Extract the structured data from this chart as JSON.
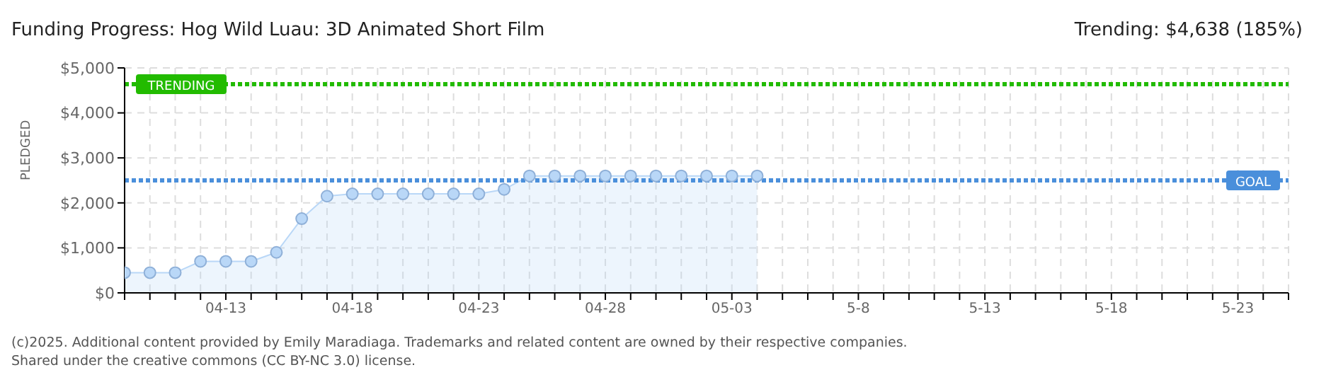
{
  "chart_data": {
    "type": "area",
    "title": "Funding Progress: Hog Wild Luau: 3D Animated Short Film",
    "subtitle": "Trending: $4,638 (185%)",
    "ylabel": "PLEDGED",
    "x": [
      "2025-04-09",
      "2025-04-10",
      "2025-04-11",
      "2025-04-12",
      "2025-04-13",
      "2025-04-14",
      "2025-04-15",
      "2025-04-16",
      "2025-04-17",
      "2025-04-18",
      "2025-04-19",
      "2025-04-20",
      "2025-04-21",
      "2025-04-22",
      "2025-04-23",
      "2025-04-24",
      "2025-04-25",
      "2025-04-26",
      "2025-04-27",
      "2025-04-28",
      "2025-04-29",
      "2025-04-30",
      "2025-05-01",
      "2025-05-02",
      "2025-05-03",
      "2025-05-04"
    ],
    "series": [
      {
        "color": "#b9d7f7",
        "values": [
          450,
          450,
          450,
          700,
          700,
          700,
          900,
          1650,
          2150,
          2200,
          2200,
          2200,
          2200,
          2200,
          2200,
          2300,
          2600,
          2600,
          2600,
          2600,
          2600,
          2600,
          2600,
          2600,
          2600,
          2600
        ]
      }
    ],
    "xlim": [
      "2025-04-09",
      "2025-05-25"
    ],
    "xticks": [
      {
        "value": "2025-04-09",
        "label": null
      },
      {
        "value": "2025-04-10",
        "label": null
      },
      {
        "value": "2025-04-11",
        "label": null
      },
      {
        "value": "2025-04-12",
        "label": null
      },
      {
        "value": "2025-04-13",
        "label": "04-13"
      },
      {
        "value": "2025-04-14",
        "label": null
      },
      {
        "value": "2025-04-15",
        "label": null
      },
      {
        "value": "2025-04-16",
        "label": null
      },
      {
        "value": "2025-04-17",
        "label": null
      },
      {
        "value": "2025-04-18",
        "label": "04-18"
      },
      {
        "value": "2025-04-19",
        "label": null
      },
      {
        "value": "2025-04-20",
        "label": null
      },
      {
        "value": "2025-04-21",
        "label": null
      },
      {
        "value": "2025-04-22",
        "label": null
      },
      {
        "value": "2025-04-23",
        "label": "04-23"
      },
      {
        "value": "2025-04-24",
        "label": null
      },
      {
        "value": "2025-04-25",
        "label": null
      },
      {
        "value": "2025-04-26",
        "label": null
      },
      {
        "value": "2025-04-27",
        "label": null
      },
      {
        "value": "2025-04-28",
        "label": "04-28"
      },
      {
        "value": "2025-04-29",
        "label": null
      },
      {
        "value": "2025-04-30",
        "label": null
      },
      {
        "value": "2025-05-01",
        "label": null
      },
      {
        "value": "2025-05-02",
        "label": null
      },
      {
        "value": "2025-05-03",
        "label": "05-03"
      },
      {
        "value": "2025-05-04",
        "label": null
      },
      {
        "value": "2025-05-05",
        "label": null
      },
      {
        "value": "2025-05-06",
        "label": null
      },
      {
        "value": "2025-05-07",
        "label": null
      },
      {
        "value": "2025-05-08",
        "label": "5-8"
      },
      {
        "value": "2025-05-09",
        "label": null
      },
      {
        "value": "2025-05-10",
        "label": null
      },
      {
        "value": "2025-05-11",
        "label": null
      },
      {
        "value": "2025-05-12",
        "label": null
      },
      {
        "value": "2025-05-13",
        "label": "5-13"
      },
      {
        "value": "2025-05-14",
        "label": null
      },
      {
        "value": "2025-05-15",
        "label": null
      },
      {
        "value": "2025-05-16",
        "label": null
      },
      {
        "value": "2025-05-17",
        "label": null
      },
      {
        "value": "2025-05-18",
        "label": "5-18"
      },
      {
        "value": "2025-05-19",
        "label": null
      },
      {
        "value": "2025-05-20",
        "label": null
      },
      {
        "value": "2025-05-21",
        "label": null
      },
      {
        "value": "2025-05-22",
        "label": null
      },
      {
        "value": "2025-05-23",
        "label": "5-23"
      },
      {
        "value": "2025-05-24",
        "label": null
      },
      {
        "value": "2025-05-25",
        "label": null
      }
    ],
    "ylim": [
      0,
      5000
    ],
    "yticks": [
      {
        "value": 0,
        "label": "$0"
      },
      {
        "value": 1000,
        "label": "$1,000"
      },
      {
        "value": 2000,
        "label": "$2,000"
      },
      {
        "value": 3000,
        "label": "$3,000"
      },
      {
        "value": 4000,
        "label": "$4,000"
      },
      {
        "value": 5000,
        "label": "$5,000"
      }
    ],
    "ref_lines": [
      {
        "axis": "y",
        "value": 4638,
        "label": "TRENDING",
        "color": "#22bb00",
        "line_style": "dotted"
      },
      {
        "axis": "y",
        "value": 2500,
        "label": "GOAL",
        "color": "#4a8fdb",
        "line_style": "dotted"
      }
    ],
    "grid": true,
    "marker": "circle",
    "annotations": [
      "(c)2025. Additional content provided by Emily Maradiaga. Trademarks and related content are owned by their respective companies.",
      "Shared under the creative commons (CC BY-NC 3.0) license."
    ]
  }
}
